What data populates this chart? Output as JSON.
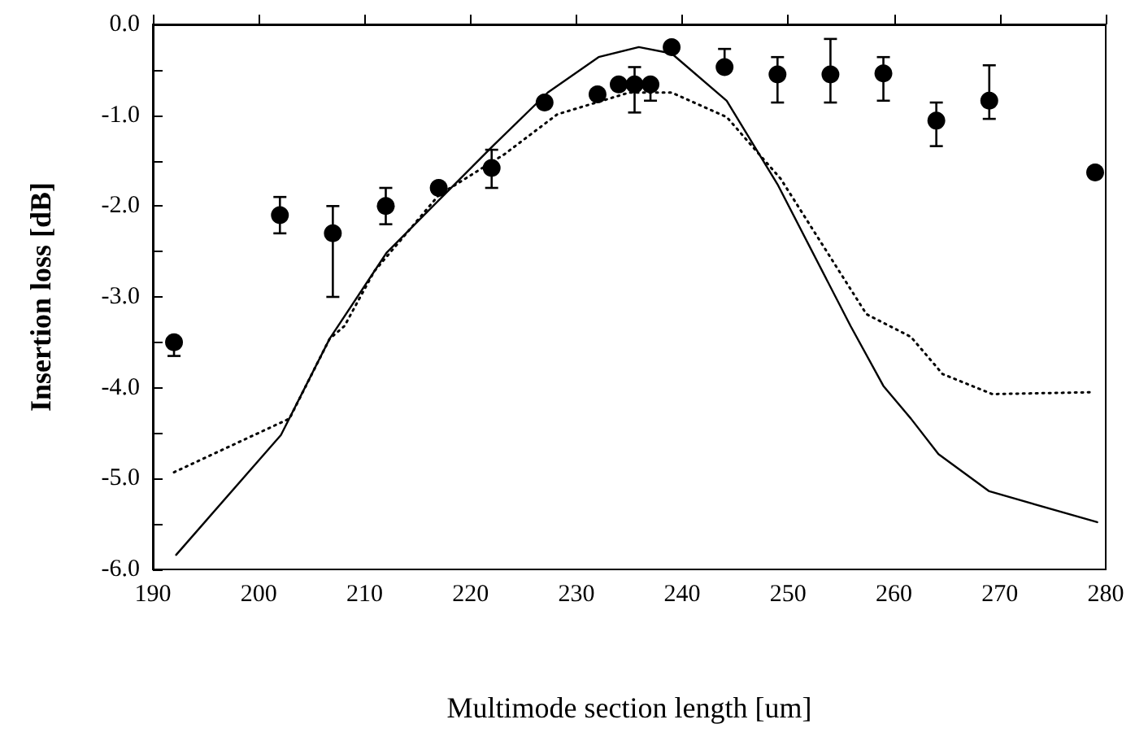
{
  "chart_data": {
    "type": "scatter",
    "xlabel": "Multimode section length [um]",
    "ylabel": "Insertion loss [dB]",
    "xlim": [
      190,
      280
    ],
    "xticks": [
      190,
      200,
      210,
      220,
      230,
      240,
      250,
      260,
      270,
      280
    ],
    "ylim": [
      -6,
      0
    ],
    "yticks": [
      {
        "value": -6,
        "label": "-6.0"
      },
      {
        "value": -5.5,
        "label": null
      },
      {
        "value": -5,
        "label": "-5.0"
      },
      {
        "value": -4.5,
        "label": null
      },
      {
        "value": -4,
        "label": "-4.0"
      },
      {
        "value": -3.5,
        "label": null
      },
      {
        "value": -3,
        "label": "-3.0"
      },
      {
        "value": -2.5,
        "label": null
      },
      {
        "value": -2,
        "label": "-2.0"
      },
      {
        "value": -1.5,
        "label": null
      },
      {
        "value": -1,
        "label": "-1.0"
      },
      {
        "value": -0.5,
        "label": null
      },
      {
        "value": 0,
        "label": "0.0"
      }
    ],
    "grid": false,
    "series": [
      {
        "color": "#000000",
        "marker": "circle",
        "x": [
          192,
          202,
          207,
          212,
          217,
          222,
          227,
          232,
          234,
          235.5,
          237,
          239,
          244,
          249,
          254,
          259,
          264,
          269,
          279
        ],
        "values": [
          -3.5,
          -2.1,
          -2.3,
          -2.0,
          -1.8,
          -1.58,
          -0.86,
          -0.77,
          -0.66,
          -0.66,
          -0.66,
          -0.25,
          -0.47,
          -0.55,
          -0.55,
          -0.54,
          -1.06,
          -0.84,
          -1.63
        ],
        "errors": [
          [
            -3.65,
            -3.5
          ],
          [
            -2.3,
            -1.9
          ],
          [
            -3.0,
            -2.0
          ],
          [
            -2.2,
            -1.8
          ],
          null,
          [
            -1.8,
            -1.38
          ],
          null,
          null,
          null,
          [
            -0.97,
            -0.47
          ],
          [
            -0.84,
            -0.66
          ],
          null,
          [
            -0.47,
            -0.27
          ],
          [
            -0.86,
            -0.36
          ],
          [
            -0.86,
            -0.16
          ],
          [
            -0.84,
            -0.36
          ],
          [
            -1.34,
            -0.86
          ],
          [
            -1.04,
            -0.45
          ],
          null
        ]
      },
      {
        "type": "line",
        "color": "#000000",
        "marker": "none",
        "line_style": "solid",
        "x": [
          192.2,
          202.1,
          206.7,
          212.1,
          222.1,
          227.3,
          232.1,
          235.9,
          239,
          244.2,
          249,
          255.9,
          259,
          261.6,
          264.2,
          269,
          279.2
        ],
        "values": [
          -5.84,
          -4.52,
          -3.46,
          -2.51,
          -1.34,
          -0.75,
          -0.36,
          -0.25,
          -0.32,
          -0.84,
          -1.76,
          -3.32,
          -3.98,
          -4.34,
          -4.73,
          -5.14,
          -5.48
        ]
      },
      {
        "type": "line",
        "color": "#000000",
        "marker": "none",
        "line_style": "dotted",
        "x": [
          192,
          202.9,
          206.7,
          208.1,
          210.9,
          217,
          223.2,
          228.2,
          235,
          239,
          244.2,
          249.3,
          257.4,
          261.6,
          264.6,
          269.3,
          278.5
        ],
        "values": [
          -4.93,
          -4.34,
          -3.46,
          -3.32,
          -2.72,
          -1.88,
          -1.43,
          -0.99,
          -0.75,
          -0.75,
          -1.02,
          -1.7,
          -3.19,
          -3.44,
          -3.85,
          -4.07,
          -4.05
        ]
      }
    ]
  }
}
